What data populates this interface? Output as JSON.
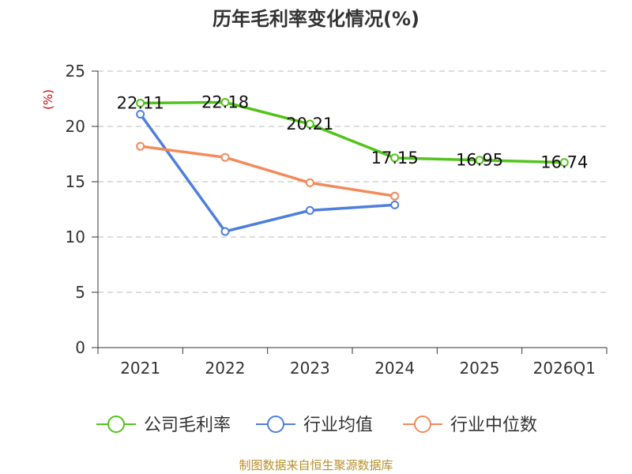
{
  "source_note": "制图数据来自恒生聚源数据库",
  "chart_data": {
    "type": "line",
    "title": "历年毛利率变化情况(%)",
    "ylabel": "(%)",
    "xlabel": "",
    "ylim": [
      0,
      25
    ],
    "yticks": [
      0,
      5,
      10,
      15,
      20,
      25
    ],
    "categories": [
      "2021",
      "2022",
      "2023",
      "2024",
      "2025",
      "2026Q1"
    ],
    "grid": true,
    "legend_position": "bottom",
    "series": [
      {
        "name": "公司毛利率",
        "color": "#52c41a",
        "values": [
          22.11,
          22.18,
          20.21,
          17.15,
          16.95,
          16.74
        ],
        "labels": [
          "22.11",
          "22.18",
          "20.21",
          "17.15",
          "16.95",
          "16.74"
        ],
        "show_labels": true
      },
      {
        "name": "行业均值",
        "color": "#4e7fdc",
        "values": [
          21.1,
          10.5,
          12.4,
          12.9,
          null,
          null
        ],
        "show_labels": false
      },
      {
        "name": "行业中位数",
        "color": "#f48a5a",
        "values": [
          18.2,
          17.2,
          14.9,
          13.7,
          null,
          null
        ],
        "show_labels": false
      }
    ]
  }
}
